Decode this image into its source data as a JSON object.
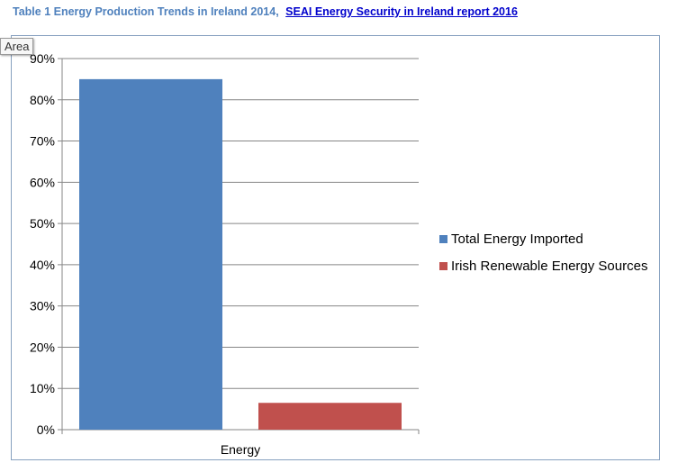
{
  "caption": {
    "text": "Table 1 Energy Production Trends in Ireland 2014,",
    "link": "SEAI Energy Security in Ireland report 2016"
  },
  "tooltip": "Area",
  "colors": {
    "series_1": "#4f81bd",
    "series_2": "#c0504d",
    "gridline": "#868686",
    "caption": "#4f81bd",
    "link": "#0000cc",
    "frame": "#86a0bf"
  },
  "chart_data": {
    "type": "bar",
    "categories": [
      "Energy"
    ],
    "series": [
      {
        "name": "Total Energy Imported",
        "values": [
          85
        ]
      },
      {
        "name": "Irish Renewable Energy Sources",
        "values": [
          6.5
        ]
      }
    ],
    "ylim": [
      0,
      90
    ],
    "yticks": [
      "0%",
      "10%",
      "20%",
      "30%",
      "40%",
      "50%",
      "60%",
      "70%",
      "80%",
      "90%"
    ],
    "y_unit": "%",
    "grid": true,
    "legend": "right"
  }
}
